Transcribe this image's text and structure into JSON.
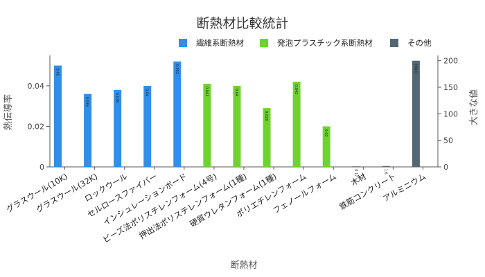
{
  "chart_data": {
    "type": "bar",
    "title": "断熱材比較統計",
    "xlabel": "断熱材",
    "ylabel_left": "熱伝導率",
    "ylabel_right": "大きな値",
    "ylim_left": [
      0,
      0.055
    ],
    "ylim_right": [
      0,
      210
    ],
    "yticks_left": [
      0,
      0.02,
      0.04
    ],
    "yticks_left_labels": [
      "0",
      "0.02",
      "0.04"
    ],
    "yticks_right": [
      0,
      50,
      100,
      150,
      200
    ],
    "yticks_right_labels": [
      "0",
      "50",
      "100",
      "150",
      "200"
    ],
    "legend": [
      {
        "name": "繊維系断熱材",
        "color": "#2f8fea"
      },
      {
        "name": "発泡プラスチック系断熱材",
        "color": "#6ed42d"
      },
      {
        "name": "その他",
        "color": "#546873"
      }
    ],
    "bars": [
      {
        "category": "グラスウール(10K)",
        "value": 0.05,
        "label": "0.05",
        "group": 0,
        "axis": "left"
      },
      {
        "category": "グラスウール(32K)",
        "value": 0.036,
        "label": "0.036",
        "group": 0,
        "axis": "left"
      },
      {
        "category": "ロックウール",
        "value": 0.038,
        "label": "0.038",
        "group": 0,
        "axis": "left"
      },
      {
        "category": "セルロースファイバー",
        "value": 0.04,
        "label": "0.04",
        "group": 0,
        "axis": "left"
      },
      {
        "category": "インシュレーションボード",
        "value": 0.052,
        "label": "0.052",
        "group": 0,
        "axis": "left"
      },
      {
        "category": "ビーズ法ポリスチレンフォーム(4号)",
        "value": 0.041,
        "label": "0.041",
        "group": 1,
        "axis": "left"
      },
      {
        "category": "押出法ポリスチレンフォーム(1種)",
        "value": 0.04,
        "label": "0.04",
        "group": 1,
        "axis": "left"
      },
      {
        "category": "硬質ウレタンフォーム(1種)",
        "value": 0.029,
        "label": "0.029",
        "group": 1,
        "axis": "left"
      },
      {
        "category": "ポリエチレンフォーム",
        "value": 0.042,
        "label": "0.042",
        "group": 1,
        "axis": "left"
      },
      {
        "category": "フェノールフォーム",
        "value": 0.02,
        "label": "0.02",
        "group": 1,
        "axis": "left"
      },
      {
        "category": "木材",
        "value": 0.12,
        "label": "0.12",
        "group": 2,
        "axis": "right"
      },
      {
        "category": "鉄筋コンクリート",
        "value": 1.6,
        "label": "1.6",
        "group": 2,
        "axis": "right"
      },
      {
        "category": "アルミニウム",
        "value": 200,
        "label": "200.0",
        "group": 2,
        "axis": "right"
      }
    ]
  }
}
